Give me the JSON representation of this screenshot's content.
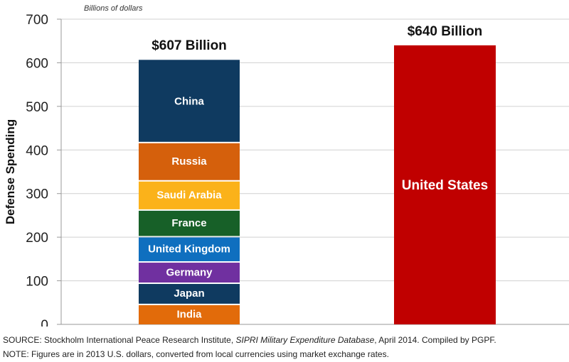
{
  "chart_data": {
    "type": "bar",
    "stacked": true,
    "subtitle": "Billions of dollars",
    "ylabel": "Defense Spending",
    "xlabel": "",
    "ylim": [
      0,
      700
    ],
    "yticks": [
      0,
      100,
      200,
      300,
      400,
      500,
      600,
      700
    ],
    "grid": true,
    "bars": [
      {
        "total_label": "$607 Billion",
        "total": 607,
        "segments": [
          {
            "name": "India",
            "value": 47.4,
            "color": "#e26b0a"
          },
          {
            "name": "Japan",
            "value": 48.6,
            "color": "#0f3a60"
          },
          {
            "name": "Germany",
            "value": 48.8,
            "color": "#7030a0"
          },
          {
            "name": "United Kingdom",
            "value": 57.9,
            "color": "#0f6fbf"
          },
          {
            "name": "France",
            "value": 61.2,
            "color": "#176028"
          },
          {
            "name": "Saudi Arabia",
            "value": 67.0,
            "color": "#fbb21a"
          },
          {
            "name": "Russia",
            "value": 87.8,
            "color": "#d5600c"
          },
          {
            "name": "China",
            "value": 188.0,
            "color": "#0f3a60"
          }
        ]
      },
      {
        "total_label": "$640 Billion",
        "total": 640,
        "segments": [
          {
            "name": "United States",
            "value": 640,
            "color": "#c00000"
          }
        ]
      }
    ]
  },
  "footer": {
    "source_prefix": "SOURCE: Stockholm International Peace Research Institute, ",
    "source_italic": "SIPRI Military Expenditure Database",
    "source_suffix": ", April 2014. Compiled by PGPF.",
    "note": "NOTE: Figures are in 2013 U.S. dollars, converted from local currencies using market exchange rates."
  }
}
